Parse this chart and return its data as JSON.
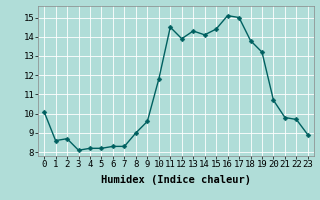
{
  "x": [
    0,
    1,
    2,
    3,
    4,
    5,
    6,
    7,
    8,
    9,
    10,
    11,
    12,
    13,
    14,
    15,
    16,
    17,
    18,
    19,
    20,
    21,
    22,
    23
  ],
  "y": [
    10.1,
    8.6,
    8.7,
    8.1,
    8.2,
    8.2,
    8.3,
    8.3,
    9.0,
    9.6,
    11.8,
    14.5,
    13.9,
    14.3,
    14.1,
    14.4,
    15.1,
    15.0,
    13.8,
    13.2,
    10.7,
    9.8,
    9.7,
    8.9
  ],
  "line_color": "#006060",
  "marker_color": "#006060",
  "bg_color": "#b0ddd8",
  "grid_color": "#ffffff",
  "xlabel": "Humidex (Indice chaleur)",
  "xlim": [
    -0.5,
    23.5
  ],
  "ylim": [
    7.8,
    15.6
  ],
  "yticks": [
    8,
    9,
    10,
    11,
    12,
    13,
    14,
    15
  ],
  "xticks": [
    0,
    1,
    2,
    3,
    4,
    5,
    6,
    7,
    8,
    9,
    10,
    11,
    12,
    13,
    14,
    15,
    16,
    17,
    18,
    19,
    20,
    21,
    22,
    23
  ],
  "xtick_labels": [
    "0",
    "1",
    "2",
    "3",
    "4",
    "5",
    "6",
    "7",
    "8",
    "9",
    "10",
    "11",
    "12",
    "13",
    "14",
    "15",
    "16",
    "17",
    "18",
    "19",
    "20",
    "21",
    "22",
    "23"
  ],
  "xlabel_fontsize": 7.5,
  "tick_fontsize": 6.5,
  "linewidth": 1.0,
  "markersize": 2.5
}
